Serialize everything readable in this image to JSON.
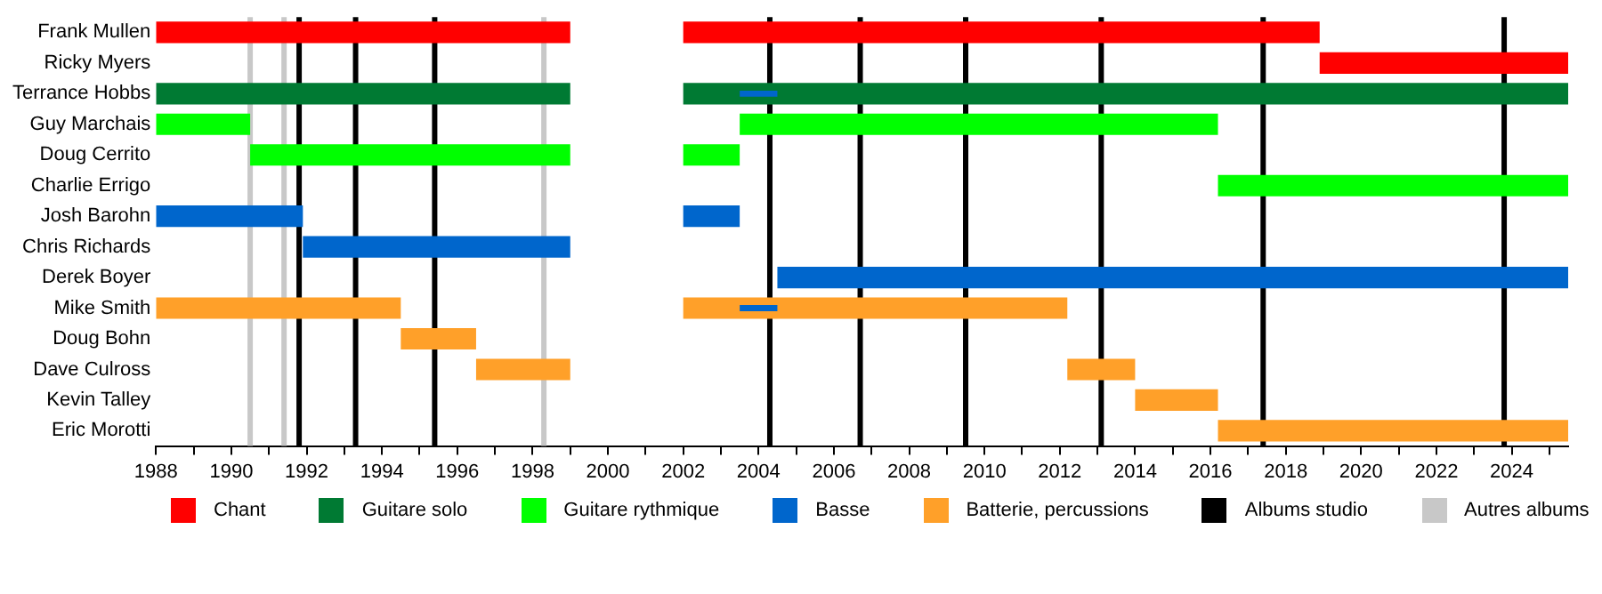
{
  "chart_data": {
    "type": "bar",
    "orientation": "horizontal",
    "legend": "bottom",
    "grid": false,
    "categories": [
      "Frank Mullen",
      "Ricky Myers",
      "Terrance Hobbs",
      "Guy Marchais",
      "Doug Cerrito",
      "Charlie Errigo",
      "Josh Barohn",
      "Chris Richards",
      "Derek Boyer",
      "Mike Smith",
      "Doug Bohn",
      "Dave Culross",
      "Kevin Talley",
      "Eric Morotti"
    ],
    "xlim": [
      1988,
      2025.5
    ],
    "xticks": [
      1988,
      {
        "value": 1989,
        "label": null
      },
      1990,
      {
        "value": 1991,
        "label": null
      },
      1992,
      {
        "value": 1993,
        "label": null
      },
      1994,
      {
        "value": 1995,
        "label": null
      },
      1996,
      {
        "value": 1997,
        "label": null
      },
      1998,
      {
        "value": 1999,
        "label": null
      },
      2000,
      {
        "value": 2001,
        "label": null
      },
      2002,
      {
        "value": 2003,
        "label": null
      },
      2004,
      {
        "value": 2005,
        "label": null
      },
      2006,
      {
        "value": 2007,
        "label": null
      },
      2008,
      {
        "value": 2009,
        "label": null
      },
      2010,
      {
        "value": 2011,
        "label": null
      },
      2012,
      {
        "value": 2013,
        "label": null
      },
      2014,
      {
        "value": 2015,
        "label": null
      },
      2016,
      {
        "value": 2017,
        "label": null
      },
      2018,
      {
        "value": 2019,
        "label": null
      },
      2020,
      {
        "value": 2021,
        "label": null
      },
      2022,
      {
        "value": 2023,
        "label": null
      },
      2024,
      {
        "value": 2025,
        "label": null
      }
    ],
    "series": [
      {
        "name": "Chant",
        "color": "#ff0000",
        "values": [
          11,
          6.6,
          null,
          null,
          null,
          null,
          null,
          null,
          null,
          null,
          null,
          null,
          null,
          null
        ],
        "base": [
          1988,
          2018.9,
          null,
          null,
          null,
          null,
          null,
          null,
          null,
          null,
          null,
          null,
          null,
          null
        ]
      },
      {
        "color": "#ff0000",
        "values": [
          16.9,
          null,
          null,
          null,
          null,
          null,
          null,
          null,
          null,
          null,
          null,
          null,
          null,
          null
        ],
        "base": [
          2002,
          null,
          null,
          null,
          null,
          null,
          null,
          null,
          null,
          null,
          null,
          null,
          null,
          null
        ]
      },
      {
        "name": "Guitare solo",
        "color": "#007a33",
        "values": [
          null,
          null,
          11,
          null,
          null,
          null,
          null,
          null,
          null,
          null,
          null,
          null,
          null,
          null
        ],
        "base": [
          null,
          null,
          1988,
          null,
          null,
          null,
          null,
          null,
          null,
          null,
          null,
          null,
          null,
          null
        ]
      },
      {
        "color": "#007a33",
        "values": [
          null,
          null,
          23.5,
          null,
          null,
          null,
          null,
          null,
          null,
          null,
          null,
          null,
          null,
          null
        ],
        "base": [
          null,
          null,
          2002,
          null,
          null,
          null,
          null,
          null,
          null,
          null,
          null,
          null,
          null,
          null
        ]
      },
      {
        "name": "Guitare rythmique",
        "color": "#00ff00",
        "values": [
          null,
          null,
          null,
          2.5,
          8.5,
          9.3,
          null,
          null,
          null,
          null,
          null,
          null,
          null,
          null
        ],
        "base": [
          null,
          null,
          null,
          1988,
          1990.5,
          2016.2,
          null,
          null,
          null,
          null,
          null,
          null,
          null,
          null
        ]
      },
      {
        "color": "#00ff00",
        "values": [
          null,
          null,
          null,
          12.7,
          1.5,
          null,
          null,
          null,
          null,
          null,
          null,
          null,
          null,
          null
        ],
        "base": [
          null,
          null,
          null,
          2003.5,
          2002,
          null,
          null,
          null,
          null,
          null,
          null,
          null,
          null,
          null
        ]
      },
      {
        "name": "Basse",
        "color": "#0066cc",
        "values": [
          null,
          null,
          null,
          null,
          null,
          null,
          3.9,
          7.1,
          21,
          null,
          null,
          null,
          null,
          null
        ],
        "base": [
          null,
          null,
          null,
          null,
          null,
          null,
          1988,
          1991.9,
          2004.5,
          null,
          null,
          null,
          null,
          null
        ]
      },
      {
        "color": "#0066cc",
        "values": [
          null,
          null,
          null,
          null,
          null,
          null,
          1.5,
          null,
          null,
          null,
          null,
          null,
          null,
          null
        ],
        "base": [
          null,
          null,
          null,
          null,
          null,
          null,
          2002,
          null,
          null,
          null,
          null,
          null,
          null,
          null
        ]
      },
      {
        "name": "Batterie, percussions",
        "color": "#ffa029",
        "values": [
          null,
          null,
          null,
          null,
          null,
          null,
          null,
          null,
          null,
          6.5,
          2,
          2.5,
          2.2,
          9.3
        ],
        "base": [
          null,
          null,
          null,
          null,
          null,
          null,
          null,
          null,
          null,
          1988,
          1994.5,
          1996.5,
          2014,
          2016.2
        ]
      },
      {
        "color": "#ffa029",
        "values": [
          null,
          null,
          null,
          null,
          null,
          null,
          null,
          null,
          null,
          10.2,
          null,
          1.8,
          null,
          null
        ],
        "base": [
          null,
          null,
          null,
          null,
          null,
          null,
          null,
          null,
          null,
          2002,
          null,
          2012.2,
          null,
          null
        ]
      },
      {
        "color": "#0066cc",
        "values": [
          null,
          null,
          1,
          null,
          null,
          null,
          null,
          null,
          null,
          1,
          null,
          null,
          null,
          null
        ],
        "base": [
          null,
          null,
          2003.5,
          null,
          null,
          null,
          null,
          null,
          null,
          2003.5,
          null,
          null,
          null,
          null
        ]
      }
    ],
    "ref_lines": [
      {
        "axis": "x",
        "value": 1991.8,
        "label": "Albums studio",
        "color": "#000000"
      },
      {
        "axis": "x",
        "value": 1993.3,
        "color": "#000000"
      },
      {
        "axis": "x",
        "value": 1995.4,
        "color": "#000000"
      },
      {
        "axis": "x",
        "value": 2004.3,
        "color": "#000000"
      },
      {
        "axis": "x",
        "value": 2006.7,
        "color": "#000000"
      },
      {
        "axis": "x",
        "value": 2009.5,
        "color": "#000000"
      },
      {
        "axis": "x",
        "value": 2013.1,
        "color": "#000000"
      },
      {
        "axis": "x",
        "value": 2017.4,
        "color": "#000000"
      },
      {
        "axis": "x",
        "value": 2023.8,
        "color": "#000000"
      },
      {
        "axis": "x",
        "value": 1990.5,
        "label": "Autres albums",
        "color": "#c8c8c8"
      },
      {
        "axis": "x",
        "value": 1991.4,
        "color": "#c8c8c8"
      },
      {
        "axis": "x",
        "value": 1998.3,
        "color": "#c8c8c8"
      }
    ]
  }
}
